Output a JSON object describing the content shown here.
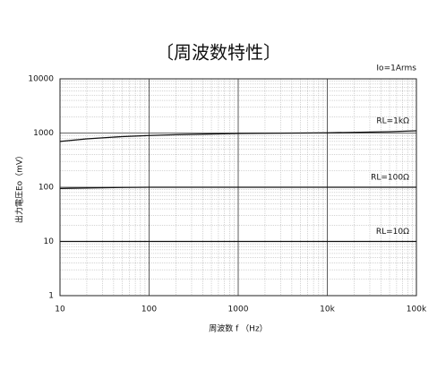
{
  "chart_data": {
    "type": "line",
    "title": "〔周波数特性〕",
    "annotation": "Io=1Arms",
    "x_label": "周波数 f （Hz）",
    "y_label": "出力電圧Eo（mV）",
    "x": [
      10,
      20,
      50,
      100,
      200,
      500,
      1000,
      2000,
      5000,
      10000,
      20000,
      50000,
      100000
    ],
    "series": [
      {
        "name": "RL=1kΩ",
        "color": "#111111",
        "values": [
          700,
          780,
          860,
          900,
          930,
          960,
          980,
          990,
          1000,
          1010,
          1030,
          1060,
          1100
        ]
      },
      {
        "name": "RL=100Ω",
        "color": "#111111",
        "values": [
          95,
          97,
          99,
          100,
          100,
          100,
          100,
          100,
          100,
          100,
          100,
          100,
          100
        ]
      },
      {
        "name": "RL=10Ω",
        "color": "#111111",
        "values": [
          10,
          10,
          10,
          10,
          10,
          10,
          10,
          10,
          10,
          10,
          10,
          10,
          10
        ]
      }
    ],
    "xlim": [
      10,
      100000
    ],
    "ylim": [
      1,
      10000
    ],
    "xticks": [
      10,
      100,
      1000,
      {
        "value": 10000,
        "label": "10k"
      },
      {
        "value": 100000,
        "label": "100k"
      }
    ],
    "yticks": [
      1,
      10,
      100,
      1000,
      10000
    ],
    "xscale": "log",
    "yscale": "log",
    "grid": true
  }
}
